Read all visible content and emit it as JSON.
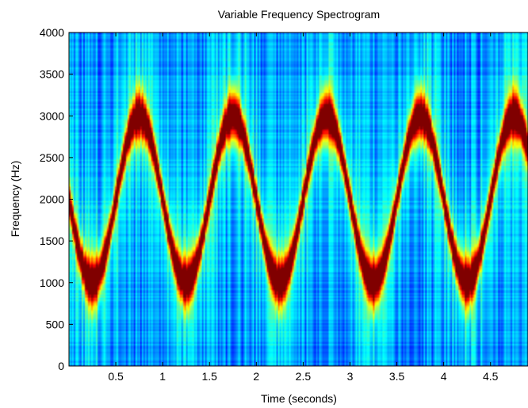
{
  "chart_data": {
    "type": "heatmap",
    "title": "Variable Frequency Spectrogram",
    "xlabel": "Time (seconds)",
    "ylabel": "Frequency (Hz)",
    "xlim": [
      0,
      4.9
    ],
    "ylim": [
      0,
      4000
    ],
    "x_ticks": [
      "0.5",
      "1",
      "1.5",
      "2",
      "2.5",
      "3",
      "3.5",
      "4",
      "4.5"
    ],
    "y_ticks": [
      "0",
      "500",
      "1000",
      "1500",
      "2000",
      "2500",
      "3000",
      "3500",
      "4000"
    ],
    "colormap": "jet",
    "signal": {
      "kind": "sinusoidal frequency sweep",
      "center_hz": 2000,
      "amplitude_hz": 1000,
      "period_s": 1.0,
      "min_hz": 1000,
      "max_hz": 3000,
      "minima_at_s": [
        0.25,
        1.25,
        2.25,
        3.25,
        4.25
      ],
      "maxima_at_s": [
        0.75,
        1.75,
        2.75,
        3.75,
        4.75
      ]
    },
    "colors": {
      "background_low": "#00008f",
      "mid": "#00ffff",
      "peak": "#800000"
    }
  }
}
